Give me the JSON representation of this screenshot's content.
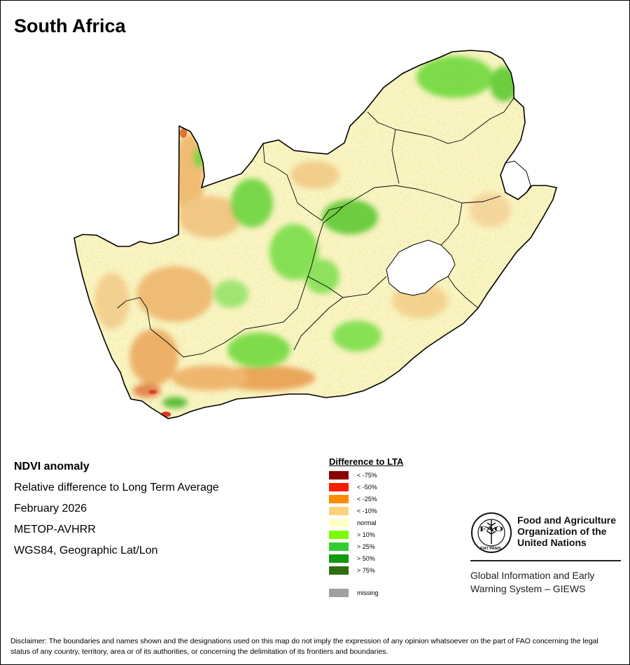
{
  "title": "South Africa",
  "info": {
    "line1": "NDVI anomaly",
    "line2": "Relative difference to Long Term Average",
    "line3": "February 2026",
    "line4": "METOP-AVHRR",
    "line5": "WGS84, Geographic Lat/Lon"
  },
  "legend": {
    "title": "Difference to LTA",
    "items": [
      {
        "label": "< -75%",
        "color": "#8b0000"
      },
      {
        "label": "< -50%",
        "color": "#ff1a00"
      },
      {
        "label": "< -25%",
        "color": "#ff8c00"
      },
      {
        "label": "< -10%",
        "color": "#ffd27a"
      },
      {
        "label": "normal",
        "color": "#ffffc8"
      },
      {
        "label": "> 10%",
        "color": "#7cfc00"
      },
      {
        "label": "> 25%",
        "color": "#32cd32"
      },
      {
        "label": "> 50%",
        "color": "#109a10"
      },
      {
        "label": "> 75%",
        "color": "#2e7010"
      }
    ],
    "missing": {
      "label": "missing",
      "color": "#a0a0a0"
    }
  },
  "organization": {
    "logo_text": "FAO",
    "logo_motto": "FIAT PANIS",
    "name_line1": "Food and Agriculture",
    "name_line2": "Organization of the",
    "name_line3": "United Nations",
    "system_line1": "Global Information and Early",
    "system_line2": "Warning System – GIEWS"
  },
  "disclaimer": "Disclaimer: The boundaries and names shown and the designations used on this map do not imply the expression of any opinion whatsoever on the part of FAO concerning the legal status of any country, territory, area or of its authorities, or concerning the delimitation of its frontiers and boundaries."
}
